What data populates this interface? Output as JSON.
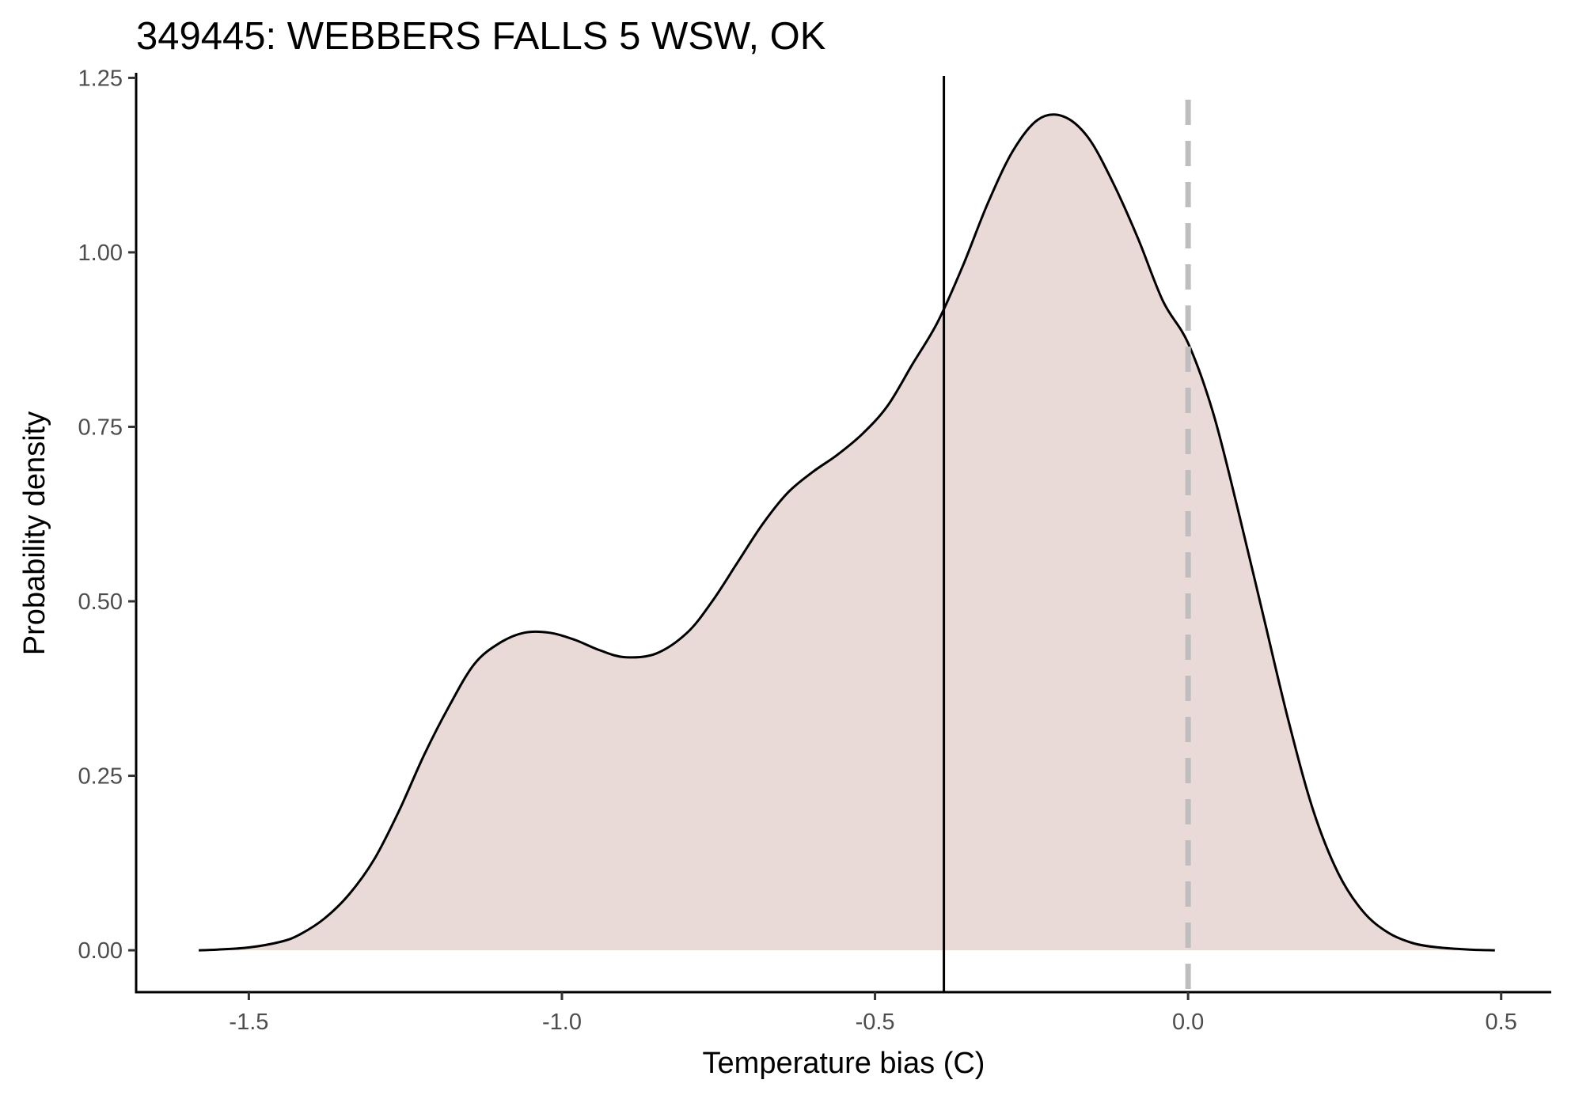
{
  "chart_data": {
    "type": "area",
    "title": "349445: WEBBERS FALLS 5 WSW, OK",
    "xlabel": "Temperature bias (C)",
    "ylabel": "Probability density",
    "xlim": [
      -1.68,
      0.58
    ],
    "ylim": [
      -0.06,
      1.255
    ],
    "x_ticks": [
      -1.5,
      -1.0,
      -0.5,
      0.0,
      0.5
    ],
    "x_tick_labels": [
      "-1.5",
      "-1.0",
      "-0.5",
      "0.0",
      "0.5"
    ],
    "y_ticks": [
      0.0,
      0.25,
      0.5,
      0.75,
      1.0,
      1.25
    ],
    "y_tick_labels": [
      "0.00",
      "0.25",
      "0.50",
      "0.75",
      "1.00",
      "1.25"
    ],
    "grid": false,
    "legend": "none",
    "colors": {
      "fill": "#eadad7",
      "curve": "#000000",
      "reference_line": "#000000",
      "zero_line": "#bebebe"
    },
    "series": [
      {
        "x": [
          -1.58,
          -1.55,
          -1.5,
          -1.45,
          -1.42,
          -1.38,
          -1.34,
          -1.3,
          -1.26,
          -1.22,
          -1.18,
          -1.14,
          -1.1,
          -1.06,
          -1.02,
          -0.98,
          -0.94,
          -0.9,
          -0.85,
          -0.8,
          -0.76,
          -0.72,
          -0.68,
          -0.64,
          -0.6,
          -0.56,
          -0.52,
          -0.48,
          -0.44,
          -0.4,
          -0.36,
          -0.32,
          -0.28,
          -0.24,
          -0.2,
          -0.16,
          -0.12,
          -0.08,
          -0.04,
          0.0,
          0.04,
          0.08,
          0.12,
          0.16,
          0.2,
          0.24,
          0.28,
          0.32,
          0.36,
          0.4,
          0.45,
          0.49
        ],
        "y": [
          0.0,
          0.001,
          0.004,
          0.012,
          0.022,
          0.045,
          0.08,
          0.13,
          0.2,
          0.28,
          0.35,
          0.41,
          0.44,
          0.455,
          0.455,
          0.445,
          0.43,
          0.42,
          0.425,
          0.455,
          0.5,
          0.555,
          0.61,
          0.655,
          0.685,
          0.71,
          0.74,
          0.78,
          0.84,
          0.9,
          0.98,
          1.07,
          1.145,
          1.19,
          1.195,
          1.165,
          1.1,
          1.02,
          0.93,
          0.87,
          0.77,
          0.63,
          0.48,
          0.33,
          0.2,
          0.11,
          0.055,
          0.025,
          0.01,
          0.004,
          0.001,
          0.0
        ]
      }
    ],
    "reference_lines": [
      {
        "x": -0.39,
        "style": "solid",
        "color": "#000000"
      },
      {
        "x": 0.0,
        "style": "dashed",
        "color": "#bebebe"
      }
    ]
  }
}
